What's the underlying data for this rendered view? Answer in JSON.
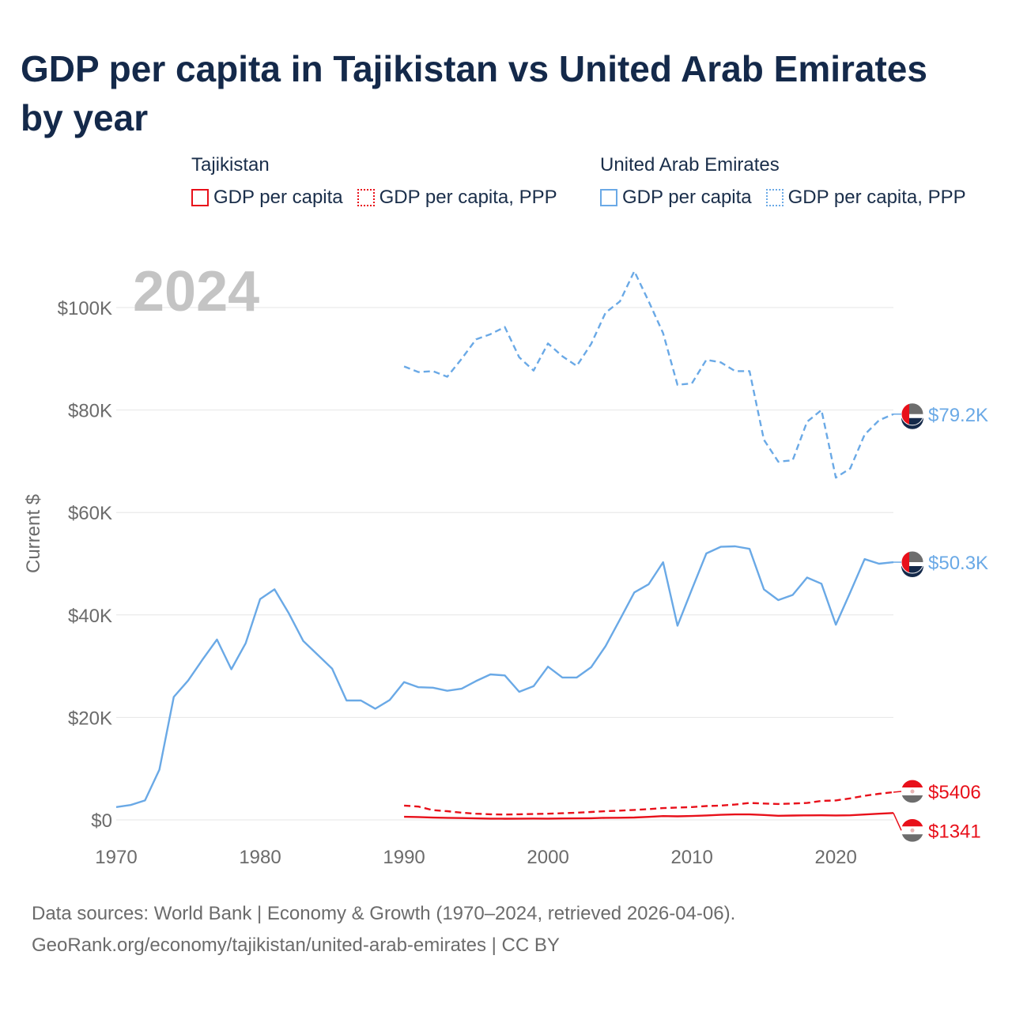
{
  "title": "GDP per capita in Tajikistan vs United Arab Emirates by year",
  "legend": {
    "groups": [
      {
        "name": "Tajikistan",
        "items": [
          "GDP per capita",
          "GDP per capita, PPP"
        ]
      },
      {
        "name": "United Arab Emirates",
        "items": [
          "GDP per capita",
          "GDP per capita, PPP"
        ]
      }
    ]
  },
  "colors": {
    "tajikistan": "#e8101a",
    "uae": "#6aa9e6",
    "grid": "#e6e6e6",
    "axis_text": "#6b6b6b",
    "year_watermark": "#c4c4c4"
  },
  "chart_data": {
    "type": "line",
    "title": "GDP per capita in Tajikistan vs United Arab Emirates by year",
    "ylabel": "Current $",
    "xlabel": "",
    "year_label": "2024",
    "xlim": [
      1970,
      2024
    ],
    "ylim": [
      0,
      110000
    ],
    "x_ticks": [
      1970,
      1980,
      1990,
      2000,
      2010,
      2020
    ],
    "y_ticks": [
      {
        "value": 0,
        "label": "$0"
      },
      {
        "value": 20000,
        "label": "$20K"
      },
      {
        "value": 40000,
        "label": "$40K"
      },
      {
        "value": 60000,
        "label": "$60K"
      },
      {
        "value": 80000,
        "label": "$80K"
      },
      {
        "value": 100000,
        "label": "$100K"
      }
    ],
    "series": [
      {
        "name": "United Arab Emirates GDP per capita, PPP",
        "country": "uae",
        "style": "dashed",
        "end_label": "$79.2K",
        "points": [
          [
            1990,
            88500
          ],
          [
            1991,
            87400
          ],
          [
            1992,
            87600
          ],
          [
            1993,
            86500
          ],
          [
            1994,
            90000
          ],
          [
            1995,
            93800
          ],
          [
            1996,
            94800
          ],
          [
            1997,
            96200
          ],
          [
            1998,
            90300
          ],
          [
            1999,
            87700
          ],
          [
            2000,
            93000
          ],
          [
            2001,
            90500
          ],
          [
            2002,
            88600
          ],
          [
            2003,
            92900
          ],
          [
            2004,
            99000
          ],
          [
            2005,
            101200
          ],
          [
            2006,
            107100
          ],
          [
            2007,
            101200
          ],
          [
            2008,
            95000
          ],
          [
            2009,
            84900
          ],
          [
            2010,
            85200
          ],
          [
            2011,
            89800
          ],
          [
            2012,
            89300
          ],
          [
            2013,
            87600
          ],
          [
            2014,
            87600
          ],
          [
            2015,
            74200
          ],
          [
            2016,
            69900
          ],
          [
            2017,
            70200
          ],
          [
            2018,
            77700
          ],
          [
            2019,
            80000
          ],
          [
            2020,
            66800
          ],
          [
            2021,
            68600
          ],
          [
            2022,
            75200
          ],
          [
            2023,
            78000
          ],
          [
            2024,
            79200
          ]
        ]
      },
      {
        "name": "United Arab Emirates GDP per capita",
        "country": "uae",
        "style": "solid",
        "end_label": "$50.3K",
        "points": [
          [
            1970,
            2500
          ],
          [
            1971,
            2900
          ],
          [
            1972,
            3800
          ],
          [
            1973,
            9800
          ],
          [
            1974,
            24000
          ],
          [
            1975,
            27200
          ],
          [
            1976,
            31300
          ],
          [
            1977,
            35200
          ],
          [
            1978,
            29400
          ],
          [
            1979,
            34500
          ],
          [
            1980,
            43100
          ],
          [
            1981,
            45000
          ],
          [
            1982,
            40300
          ],
          [
            1983,
            34900
          ],
          [
            1984,
            32200
          ],
          [
            1985,
            29500
          ],
          [
            1986,
            23300
          ],
          [
            1987,
            23300
          ],
          [
            1988,
            21700
          ],
          [
            1989,
            23400
          ],
          [
            1990,
            26900
          ],
          [
            1991,
            25900
          ],
          [
            1992,
            25800
          ],
          [
            1993,
            25200
          ],
          [
            1994,
            25600
          ],
          [
            1995,
            27100
          ],
          [
            1996,
            28400
          ],
          [
            1997,
            28200
          ],
          [
            1998,
            25000
          ],
          [
            1999,
            26100
          ],
          [
            2000,
            29900
          ],
          [
            2001,
            27800
          ],
          [
            2002,
            27800
          ],
          [
            2003,
            29800
          ],
          [
            2004,
            33900
          ],
          [
            2005,
            39100
          ],
          [
            2006,
            44400
          ],
          [
            2007,
            46000
          ],
          [
            2008,
            50300
          ],
          [
            2009,
            37900
          ],
          [
            2010,
            45000
          ],
          [
            2011,
            52000
          ],
          [
            2012,
            53300
          ],
          [
            2013,
            53400
          ],
          [
            2014,
            52900
          ],
          [
            2015,
            45000
          ],
          [
            2016,
            42900
          ],
          [
            2017,
            43900
          ],
          [
            2018,
            47300
          ],
          [
            2019,
            46100
          ],
          [
            2020,
            38100
          ],
          [
            2021,
            44400
          ],
          [
            2022,
            50900
          ],
          [
            2023,
            50000
          ],
          [
            2024,
            50300
          ]
        ]
      },
      {
        "name": "Tajikistan GDP per capita, PPP",
        "country": "tajikistan",
        "style": "dashed",
        "end_label": "$5406",
        "points": [
          [
            1990,
            2800
          ],
          [
            1991,
            2600
          ],
          [
            1992,
            1900
          ],
          [
            1993,
            1700
          ],
          [
            1994,
            1400
          ],
          [
            1995,
            1200
          ],
          [
            1996,
            1100
          ],
          [
            1997,
            1050
          ],
          [
            1998,
            1100
          ],
          [
            1999,
            1150
          ],
          [
            2000,
            1200
          ],
          [
            2001,
            1300
          ],
          [
            2002,
            1400
          ],
          [
            2003,
            1550
          ],
          [
            2004,
            1700
          ],
          [
            2005,
            1800
          ],
          [
            2006,
            1950
          ],
          [
            2007,
            2100
          ],
          [
            2008,
            2300
          ],
          [
            2009,
            2400
          ],
          [
            2010,
            2500
          ],
          [
            2011,
            2700
          ],
          [
            2012,
            2800
          ],
          [
            2013,
            3000
          ],
          [
            2014,
            3300
          ],
          [
            2015,
            3200
          ],
          [
            2016,
            3100
          ],
          [
            2017,
            3200
          ],
          [
            2018,
            3300
          ],
          [
            2019,
            3700
          ],
          [
            2020,
            3800
          ],
          [
            2021,
            4200
          ],
          [
            2022,
            4700
          ],
          [
            2023,
            5100
          ],
          [
            2024,
            5406
          ]
        ]
      },
      {
        "name": "Tajikistan GDP per capita",
        "country": "tajikistan",
        "style": "solid",
        "end_label": "$1341",
        "points": [
          [
            1990,
            600
          ],
          [
            1991,
            550
          ],
          [
            1992,
            450
          ],
          [
            1993,
            400
          ],
          [
            1994,
            350
          ],
          [
            1995,
            300
          ],
          [
            1996,
            250
          ],
          [
            1997,
            230
          ],
          [
            1998,
            240
          ],
          [
            1999,
            260
          ],
          [
            2000,
            240
          ],
          [
            2001,
            280
          ],
          [
            2002,
            300
          ],
          [
            2003,
            330
          ],
          [
            2004,
            400
          ],
          [
            2005,
            420
          ],
          [
            2006,
            470
          ],
          [
            2007,
            580
          ],
          [
            2008,
            740
          ],
          [
            2009,
            690
          ],
          [
            2010,
            750
          ],
          [
            2011,
            870
          ],
          [
            2012,
            980
          ],
          [
            2013,
            1060
          ],
          [
            2014,
            1060
          ],
          [
            2015,
            950
          ],
          [
            2016,
            800
          ],
          [
            2017,
            850
          ],
          [
            2018,
            880
          ],
          [
            2019,
            890
          ],
          [
            2020,
            870
          ],
          [
            2021,
            900
          ],
          [
            2022,
            1050
          ],
          [
            2023,
            1200
          ],
          [
            2024,
            1341
          ]
        ]
      }
    ]
  },
  "footer": {
    "line1": "Data sources: World Bank | Economy & Growth (1970–2024, retrieved 2026-04-06).",
    "line2": "GeoRank.org/economy/tajikistan/united-arab-emirates | CC BY"
  }
}
